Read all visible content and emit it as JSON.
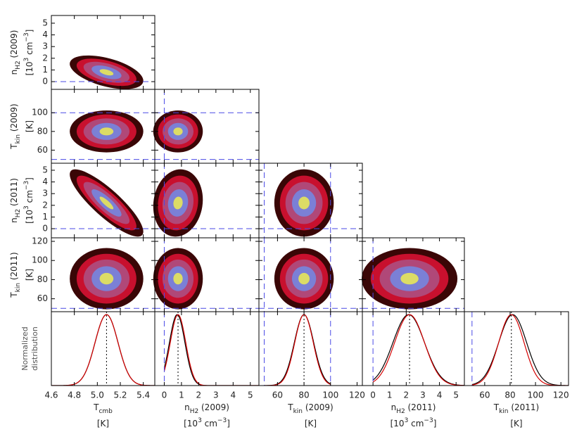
{
  "chart_data": {
    "type": "corner",
    "params": [
      {
        "label": {
          "main": "T",
          "sub": "cmb"
        },
        "unit": {
          "pre": "[K]"
        },
        "xlim": [
          4.6,
          5.5
        ],
        "xticks": [
          4.6,
          4.8,
          {
            "value": 5,
            "label": "5.0"
          },
          5.2,
          5.4
        ],
        "mean": 5.08,
        "sd": 0.1,
        "mean_black": 5.08,
        "sd_black": 0.1
      },
      {
        "label": {
          "main": "n",
          "sub": "H2",
          "rest": " (2009)"
        },
        "unit": {
          "pre": "[10",
          "sup": "3",
          "mid": " cm",
          "sup2": "−3",
          "post": "]"
        },
        "xlim": [
          -0.55,
          5.5
        ],
        "xticks": [
          0,
          1,
          2,
          3,
          4,
          5
        ],
        "ylim": [
          -0.66,
          5.66
        ],
        "yticks": [
          0,
          1,
          2,
          3,
          4,
          5
        ],
        "prior": [
          0,
          null
        ],
        "mean": 0.8,
        "sd": 0.45,
        "mean_black": 0.75,
        "sd_black": 0.45
      },
      {
        "label": {
          "main": "T",
          "sub": "kin",
          "rest": " (2009)"
        },
        "unit": {
          "pre": "[K]"
        },
        "xlim": [
          46,
          124
        ],
        "xticks": [
          60,
          80,
          100,
          120
        ],
        "ylim": [
          46,
          125
        ],
        "yticks": [
          60,
          80,
          100
        ],
        "prior": [
          50,
          100
        ],
        "mean": 80,
        "sd": 7,
        "mean_black": 80,
        "sd_black": 7.3
      },
      {
        "label": {
          "main": "n",
          "sub": "H2",
          "rest": " (2011)"
        },
        "unit": {
          "pre": "[10",
          "sup": "3",
          "mid": " cm",
          "sup2": "−3",
          "post": "]"
        },
        "xlim": [
          -0.64,
          5.5
        ],
        "xticks": [
          0,
          1,
          2,
          3,
          4,
          5
        ],
        "ylim": [
          -0.78,
          5.6
        ],
        "yticks": [
          0,
          1,
          2,
          3,
          4,
          5
        ],
        "prior": [
          0,
          null
        ],
        "mean": 2.2,
        "sd": 0.9,
        "mean_black": 2.15,
        "sd_black": 0.95
      },
      {
        "label": {
          "main": "T",
          "sub": "kin",
          "rest": " (2011)"
        },
        "unit": {
          "pre": "[K]"
        },
        "xlim": [
          44,
          126
        ],
        "xticks": [
          60,
          80,
          100,
          120
        ],
        "ylim": [
          46.5,
          123.7
        ],
        "yticks": [
          60,
          80,
          100,
          120
        ],
        "prior": [
          50,
          null
        ],
        "mean": 81,
        "sd": 10,
        "mean_black": 82,
        "sd_black": 11
      }
    ],
    "pairs": [
      {
        "x": 0,
        "y": 1,
        "r": -0.5
      },
      {
        "x": 0,
        "y": 2,
        "r": 0
      },
      {
        "x": 1,
        "y": 2,
        "r": 0
      },
      {
        "x": 0,
        "y": 3,
        "r": -0.85
      },
      {
        "x": 1,
        "y": 3,
        "r": 0.1
      },
      {
        "x": 2,
        "y": 3,
        "r": 0
      },
      {
        "x": 0,
        "y": 4,
        "r": 0
      },
      {
        "x": 1,
        "y": 4,
        "r": 0
      },
      {
        "x": 2,
        "y": 4,
        "r": 0
      },
      {
        "x": 3,
        "y": 4,
        "r": 0
      }
    ],
    "ylabel_1d": [
      "Normalized",
      "distribution"
    ],
    "density_colors": [
      "#3a0606",
      "#c8102e",
      "#b04878",
      "#7b80d6",
      "#dcdc66"
    ],
    "curve_colors": {
      "black": "#000000",
      "red": "#d40000"
    },
    "prior_color": "#4a4ae6"
  }
}
